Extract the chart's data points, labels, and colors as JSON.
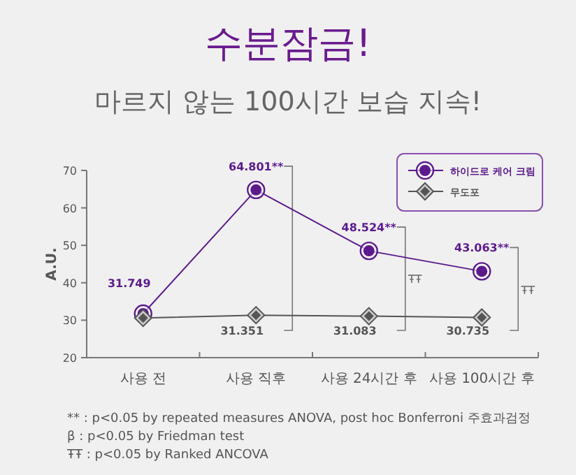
{
  "chart_data": {
    "type": "line",
    "title": "수분잠금!",
    "subtitle": "마르지 않는 100시간 보습 지속!",
    "ylabel": "A.U.",
    "categories": [
      "사용 전",
      "사용 직후",
      "사용 24시간 후",
      "사용 100시간 후"
    ],
    "ylim": [
      20,
      70
    ],
    "yticks": [
      20,
      30,
      40,
      50,
      60,
      70
    ],
    "grid": false,
    "legend": "top right",
    "series": [
      {
        "name": "하이드로 케어 크림",
        "color": "#5c1a8c",
        "marker": "circle",
        "values": [
          31.749,
          64.801,
          48.524,
          43.063
        ],
        "value_labels": [
          "31.749",
          "64.801**",
          "48.524**",
          "43.063**"
        ]
      },
      {
        "name": "무도포",
        "color": "#555555",
        "marker": "diamond",
        "values": [
          30.6,
          31.351,
          31.083,
          30.735
        ],
        "value_labels": [
          null,
          "31.351",
          "31.083",
          "30.735"
        ]
      }
    ],
    "annotations": [
      "ŦŦ",
      "ŦŦ",
      "** : p<0.05 by repeated measures ANOVA, post hoc Bonferroni 주효과검정",
      "β : p<0.05 by Friedman test",
      "ŦŦ : p<0.05 by Ranked ANCOVA"
    ]
  }
}
